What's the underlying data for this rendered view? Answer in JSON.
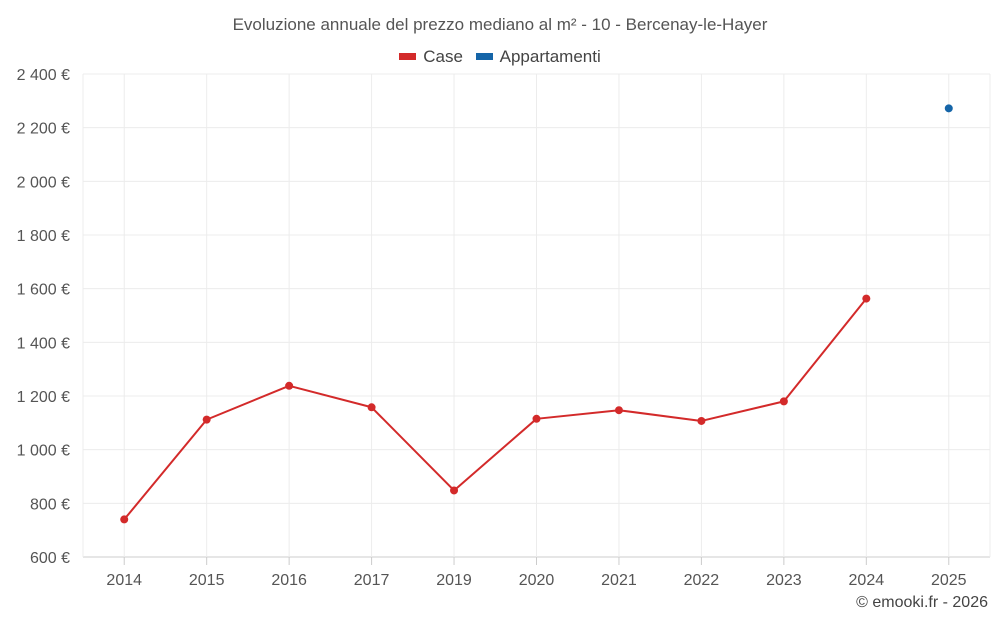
{
  "chart_data": {
    "type": "line",
    "title": "Evoluzione annuale del prezzo mediano al m² - 10 - Bercenay-le-Hayer",
    "categories": [
      "2014",
      "2015",
      "2016",
      "2017",
      "2019",
      "2020",
      "2021",
      "2022",
      "2023",
      "2024",
      "2025"
    ],
    "ylim": [
      600,
      2400
    ],
    "yticks": [
      600,
      800,
      1000,
      1200,
      1400,
      1600,
      1800,
      2000,
      2200,
      2400
    ],
    "ytick_labels": [
      "600 €",
      "800 €",
      "1 000 €",
      "1 200 €",
      "1 400 €",
      "1 600 €",
      "1 800 €",
      "2 000 €",
      "2 200 €",
      "2 400 €"
    ],
    "grid": true,
    "legend_position": "top-center",
    "series": [
      {
        "name": "Case",
        "color": "#d32a2a",
        "values": [
          740,
          1112,
          1238,
          1158,
          848,
          1115,
          1147,
          1107,
          1180,
          1563,
          null
        ]
      },
      {
        "name": "Appartamenti",
        "color": "#1565a8",
        "values": [
          null,
          null,
          null,
          null,
          null,
          null,
          null,
          null,
          null,
          null,
          2272
        ]
      }
    ]
  },
  "credit": "© emooki.fr - 2026"
}
